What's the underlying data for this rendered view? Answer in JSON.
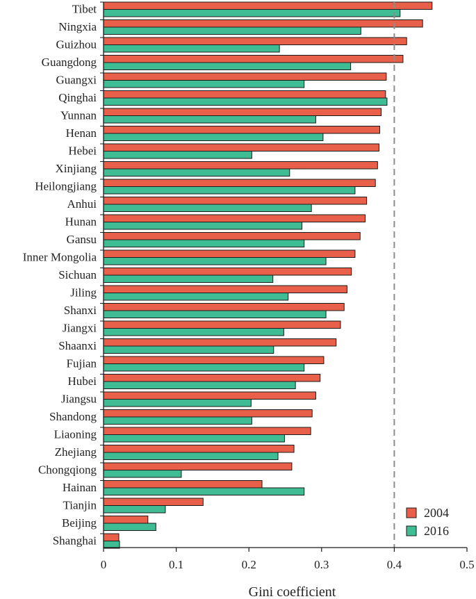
{
  "chart_data": {
    "type": "bar",
    "orientation": "horizontal",
    "title": "",
    "xlabel": "Gini coefficient",
    "ylabel": "",
    "xlim": [
      0,
      0.5
    ],
    "x_ticks": [
      0,
      0.1,
      0.2,
      0.3,
      0.4,
      0.5
    ],
    "x_tick_labels": [
      "0",
      "0.1",
      "0.2",
      "0.3",
      "0.4",
      "0.5"
    ],
    "reference_line": {
      "x": 0.4,
      "style": "dashed",
      "color": "#8c8c8c"
    },
    "categories": [
      "Tibet",
      "Ningxia",
      "Guizhou",
      "Guangdong",
      "Guangxi",
      "Qinghai",
      "Yunnan",
      "Henan",
      "Hebei",
      "Xinjiang",
      "Heilongjiang",
      "Anhui",
      "Hunan",
      "Gansu",
      "Inner Mongolia",
      "Sichuan",
      "Jiling",
      "Shanxi",
      "Jiangxi",
      "Shaanxi",
      "Fujian",
      "Hubei",
      "Jiangsu",
      "Shandong",
      "Liaoning",
      "Zhejiang",
      "Chongqiong",
      "Hainan",
      "Tianjin",
      "Beijing",
      "Shanghai"
    ],
    "series": [
      {
        "name": "2004",
        "color": "#e8604a",
        "values": [
          0.452,
          0.439,
          0.417,
          0.412,
          0.389,
          0.388,
          0.382,
          0.38,
          0.379,
          0.377,
          0.374,
          0.362,
          0.36,
          0.353,
          0.346,
          0.341,
          0.335,
          0.331,
          0.326,
          0.32,
          0.303,
          0.298,
          0.292,
          0.287,
          0.285,
          0.262,
          0.259,
          0.218,
          0.137,
          0.061,
          0.021
        ]
      },
      {
        "name": "2016",
        "color": "#3fbc94",
        "values": [
          0.408,
          0.354,
          0.242,
          0.34,
          0.276,
          0.39,
          0.292,
          0.302,
          0.204,
          0.256,
          0.346,
          0.286,
          0.273,
          0.276,
          0.306,
          0.233,
          0.254,
          0.306,
          0.248,
          0.234,
          0.276,
          0.264,
          0.203,
          0.204,
          0.249,
          0.24,
          0.107,
          0.276,
          0.085,
          0.072,
          0.022
        ]
      }
    ],
    "legend": {
      "position": "bottom-right"
    }
  }
}
